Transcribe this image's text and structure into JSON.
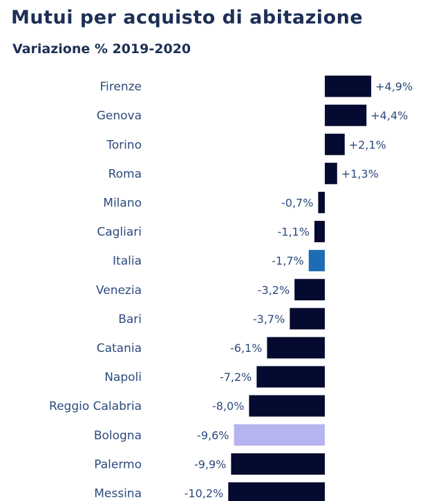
{
  "title": "Mutui per acquisto di abitazione",
  "subtitle": "Variazione % 2019-2020",
  "colors": {
    "default_bar": "#050a30",
    "italia_bar": "#1f6cb4",
    "bologna_bar": "#b6b4ee",
    "label_text": "#2c4a7c",
    "title_text": "#1c2f55"
  },
  "chart_data": {
    "type": "bar",
    "orientation": "horizontal",
    "title": "Mutui per acquisto di abitazione",
    "subtitle": "Variazione % 2019-2020",
    "categories": [
      "Firenze",
      "Genova",
      "Torino",
      "Roma",
      "Milano",
      "Cagliari",
      "Italia",
      "Venezia",
      "Bari",
      "Catania",
      "Napoli",
      "Reggio Calabria",
      "Bologna",
      "Palermo",
      "Messina"
    ],
    "values": [
      4.9,
      4.4,
      2.1,
      1.3,
      -0.7,
      -1.1,
      -1.7,
      -3.2,
      -3.7,
      -6.1,
      -7.2,
      -8.0,
      -9.6,
      -9.9,
      -10.2
    ],
    "value_labels": [
      "+4,9%",
      "+4,4%",
      "+2,1%",
      "+1,3%",
      "-0,7%",
      "-1,1%",
      "-1,7%",
      "-3,2%",
      "-3,7%",
      "-6,1%",
      "-7,2%",
      "-8,0%",
      "-9,6%",
      "-9,9%",
      "-10,2%"
    ],
    "highlight": {
      "Italia": "#1f6cb4",
      "Bologna": "#b6b4ee"
    },
    "xlim": [
      -10.2,
      4.9
    ],
    "grid": false,
    "legend": "none"
  }
}
